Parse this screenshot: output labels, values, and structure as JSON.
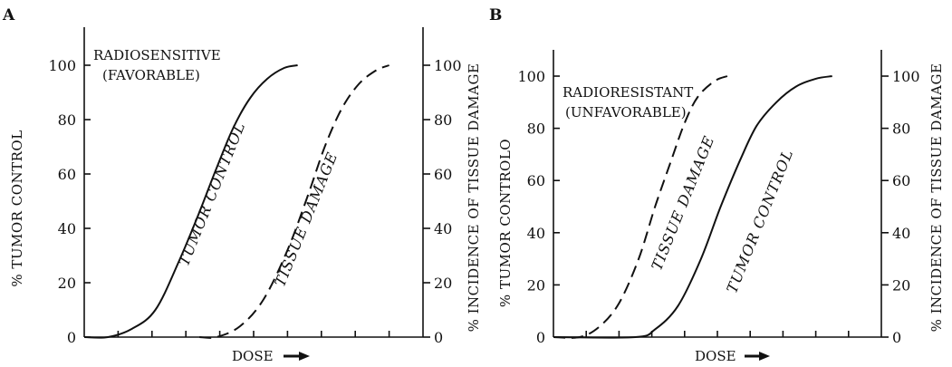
{
  "chart_data": [
    {
      "panel": "A",
      "type": "line",
      "annotation_line1": "RADIOSENSITIVE",
      "annotation_line2": "(FAVORABLE)",
      "ylabel_left": "% TUMOR CONTROL",
      "ylabel_right": "% INCIDENCE OF TISSUE DAMAGE",
      "xlabel": "DOSE",
      "yticks": [
        0,
        20,
        40,
        60,
        80,
        100
      ],
      "ylim": [
        0,
        100
      ],
      "xlim": [
        0,
        10
      ],
      "grid": false,
      "series": [
        {
          "name": "TUMOR CONTROL",
          "style": "solid",
          "x": [
            0,
            0.7,
            1.4,
            2.1,
            2.8,
            3.4,
            3.9,
            4.4,
            4.9,
            5.4,
            5.9,
            6.3
          ],
          "y": [
            0,
            0,
            3,
            10,
            28,
            46,
            62,
            77,
            88,
            95,
            99,
            100
          ]
        },
        {
          "name": "TISSUE DAMAGE",
          "style": "dashed",
          "x": [
            3.4,
            3.9,
            4.6,
            5.3,
            6.0,
            6.6,
            7.1,
            7.6,
            8.1,
            8.6,
            9.0
          ],
          "y": [
            0,
            0,
            4,
            14,
            32,
            52,
            70,
            84,
            93,
            98,
            100
          ]
        }
      ]
    },
    {
      "panel": "B",
      "type": "line",
      "annotation_line1": "RADIORESISTANT",
      "annotation_line2": "(UNFAVORABLE)",
      "ylabel_left": "% TUMOR CONTROLO",
      "ylabel_right": "% INCIDENCE OF TISSUE DAMAGE",
      "xlabel": "DOSE",
      "yticks": [
        0,
        20,
        40,
        60,
        80,
        100
      ],
      "ylim": [
        0,
        100
      ],
      "xlim": [
        0,
        10
      ],
      "grid": false,
      "series": [
        {
          "name": "TISSUE DAMAGE",
          "style": "dashed",
          "x": [
            0,
            0.8,
            1.4,
            2.0,
            2.6,
            3.1,
            3.6,
            4.0,
            4.4,
            4.9,
            5.3
          ],
          "y": [
            0,
            0,
            4,
            13,
            30,
            50,
            68,
            82,
            92,
            98,
            100
          ]
        },
        {
          "name": "TUMOR CONTROL",
          "style": "solid",
          "x": [
            0,
            2.5,
            3.1,
            3.8,
            4.5,
            5.1,
            5.7,
            6.2,
            6.8,
            7.4,
            8.0,
            8.5
          ],
          "y": [
            0,
            0,
            3,
            12,
            30,
            50,
            68,
            81,
            90,
            96,
            99,
            100
          ]
        }
      ]
    }
  ]
}
